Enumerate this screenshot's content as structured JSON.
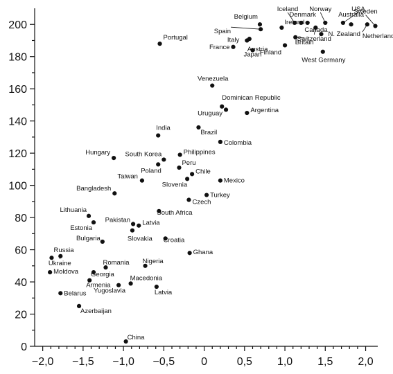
{
  "chart_data": {
    "type": "scatter",
    "title": "",
    "xlabel": "",
    "ylabel": "",
    "xlim": [
      -2.1,
      2.15
    ],
    "ylim": [
      0,
      210
    ],
    "xticks": [
      -2.0,
      -1.5,
      -1.0,
      -0.5,
      0,
      0.5,
      1.0,
      1.5,
      2.0
    ],
    "xtick_labels": [
      "−2,0",
      "−1,5",
      "−1,0",
      "−0,5",
      "0",
      "0,5",
      "1,0",
      "1,5",
      "2,0"
    ],
    "yticks": [
      0,
      20,
      40,
      60,
      80,
      100,
      120,
      140,
      160,
      180,
      200
    ],
    "ytick_labels": [
      "0",
      "20",
      "40",
      "60",
      "80",
      "100",
      "120",
      "140",
      "160",
      "180",
      "200"
    ],
    "grid": false,
    "points": [
      {
        "label": "Iceland",
        "x": 1.12,
        "y": 201
      },
      {
        "label": "Norway",
        "x": 1.5,
        "y": 201
      },
      {
        "label": "USA",
        "x": 1.72,
        "y": 201
      },
      {
        "label": "Sweden",
        "x": 2.12,
        "y": 199
      },
      {
        "label": "Denmark",
        "x": 1.28,
        "y": 201
      },
      {
        "label": "Australia",
        "x": 1.82,
        "y": 200
      },
      {
        "label": "Belgium",
        "x": 0.69,
        "y": 200
      },
      {
        "label": "Ireland",
        "x": 0.96,
        "y": 198
      },
      {
        "label": "Spain",
        "x": 0.7,
        "y": 197
      },
      {
        "label": "Canada",
        "x": 1.2,
        "y": 201
      },
      {
        "label": "Switzerland",
        "x": 1.38,
        "y": 198
      },
      {
        "label": "N. Zealand",
        "x": 1.45,
        "y": 194
      },
      {
        "label": "Netherlands",
        "x": 2.02,
        "y": 200
      },
      {
        "label": "Austria",
        "x": 0.56,
        "y": 191
      },
      {
        "label": "Italy",
        "x": 0.53,
        "y": 190
      },
      {
        "label": "France",
        "x": 0.36,
        "y": 186
      },
      {
        "label": "Japan",
        "x": 0.6,
        "y": 184
      },
      {
        "label": "Finland",
        "x": 1.0,
        "y": 187
      },
      {
        "label": "Britain",
        "x": 1.13,
        "y": 192
      },
      {
        "label": "West Germany",
        "x": 1.47,
        "y": 183
      },
      {
        "label": "Portugal",
        "x": -0.55,
        "y": 188
      },
      {
        "label": "Venezuela",
        "x": 0.1,
        "y": 162
      },
      {
        "label": "Dominican Republic",
        "x": 0.22,
        "y": 149
      },
      {
        "label": "Uruguay",
        "x": 0.27,
        "y": 147
      },
      {
        "label": "Argentina",
        "x": 0.53,
        "y": 145
      },
      {
        "label": "India",
        "x": -0.57,
        "y": 131
      },
      {
        "label": "Brazil",
        "x": -0.07,
        "y": 136
      },
      {
        "label": "Colombia",
        "x": 0.2,
        "y": 127
      },
      {
        "label": "Hungary",
        "x": -1.12,
        "y": 117
      },
      {
        "label": "South Korea",
        "x": -0.5,
        "y": 116
      },
      {
        "label": "Philippines",
        "x": -0.3,
        "y": 119
      },
      {
        "label": "Poland",
        "x": -0.57,
        "y": 113
      },
      {
        "label": "Peru",
        "x": -0.31,
        "y": 111
      },
      {
        "label": "Taiwan",
        "x": -0.77,
        "y": 103
      },
      {
        "label": "Slovenia",
        "x": -0.21,
        "y": 104
      },
      {
        "label": "Chile",
        "x": -0.15,
        "y": 107
      },
      {
        "label": "Mexico",
        "x": 0.2,
        "y": 103
      },
      {
        "label": "Bangladesh",
        "x": -1.11,
        "y": 95
      },
      {
        "label": "Turkey",
        "x": 0.03,
        "y": 94
      },
      {
        "label": "Czech",
        "x": -0.19,
        "y": 91
      },
      {
        "label": "South Africa",
        "x": -0.56,
        "y": 84
      },
      {
        "label": "Lithuania",
        "x": -1.43,
        "y": 81
      },
      {
        "label": "Estonia",
        "x": -1.37,
        "y": 77
      },
      {
        "label": "Pakistan",
        "x": -0.88,
        "y": 76
      },
      {
        "label": "Latvia",
        "x": -0.81,
        "y": 75
      },
      {
        "label": "Slovakia",
        "x": -0.89,
        "y": 72
      },
      {
        "label": "Croatia",
        "x": -0.48,
        "y": 67
      },
      {
        "label": "Bulgaria",
        "x": -1.26,
        "y": 65
      },
      {
        "label": "Ghana",
        "x": -0.18,
        "y": 58
      },
      {
        "label": "Russia",
        "x": -1.89,
        "y": 55
      },
      {
        "label": "Ukraine",
        "x": -1.78,
        "y": 56
      },
      {
        "label": "Romania",
        "x": -1.22,
        "y": 49
      },
      {
        "label": "Nigeria",
        "x": -0.73,
        "y": 50
      },
      {
        "label": "Moldova",
        "x": -1.91,
        "y": 46
      },
      {
        "label": "Georgia",
        "x": -1.37,
        "y": 46
      },
      {
        "label": "Armenia",
        "x": -1.42,
        "y": 41
      },
      {
        "label": "Macedonia",
        "x": -0.91,
        "y": 39
      },
      {
        "label": "Yugoslavia",
        "x": -1.06,
        "y": 38
      },
      {
        "label": "Latvia",
        "x": -0.59,
        "y": 37
      },
      {
        "label": "Belarus",
        "x": -1.78,
        "y": 33
      },
      {
        "label": "Azerbaijan",
        "x": -1.55,
        "y": 25
      },
      {
        "label": "China",
        "x": -0.97,
        "y": 3
      }
    ]
  }
}
